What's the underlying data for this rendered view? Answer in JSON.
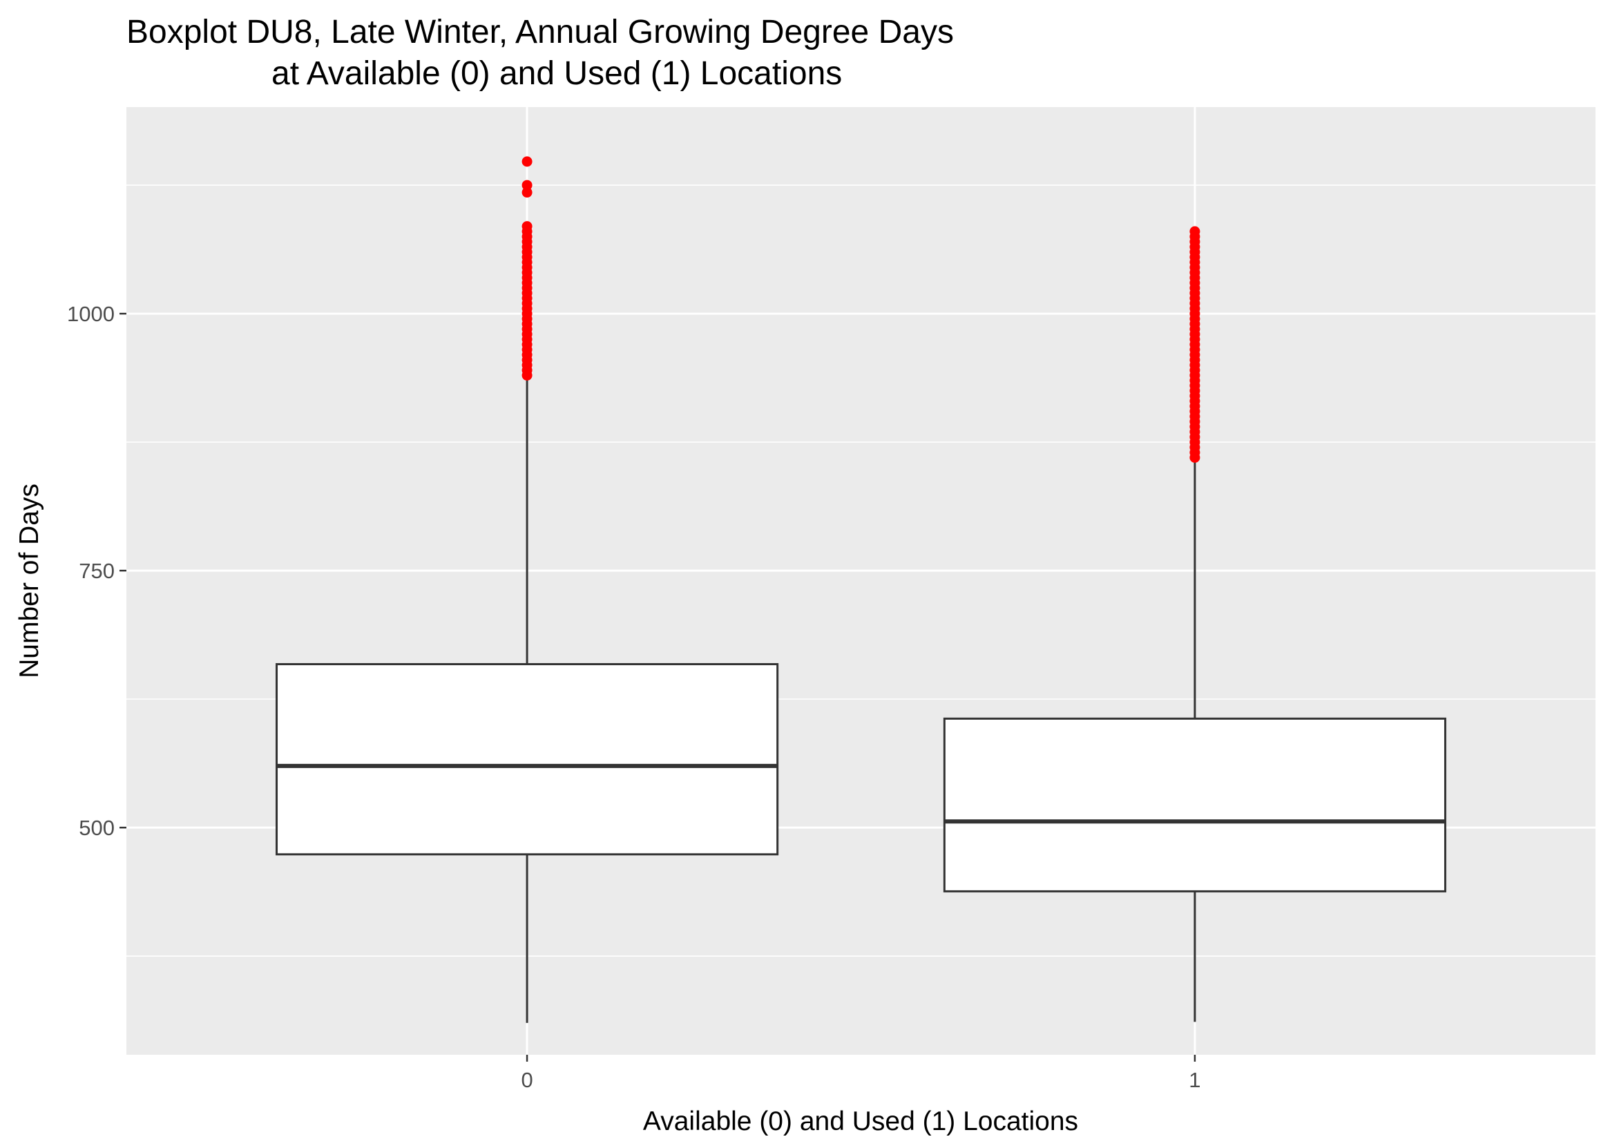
{
  "chart_data": {
    "type": "boxplot",
    "title_lines": [
      "Boxplot DU8, Late Winter, Annual Growing Degree Days",
      "at Available (0) and Used (1) Locations"
    ],
    "xlabel": "Available (0) and Used (1) Locations",
    "ylabel": "Number of Days",
    "categories": [
      "0",
      "1"
    ],
    "ylim": [
      279,
      1201
    ],
    "yticks": [
      {
        "value": 500,
        "label": "500"
      },
      {
        "value": 750,
        "label": "750"
      },
      {
        "value": 1000,
        "label": "1000"
      }
    ],
    "y_minor_ticks": [
      375,
      625,
      875,
      1125
    ],
    "grid": true,
    "panel_background": "#ebebeb",
    "grid_color": "#ffffff",
    "box_fill": "#ffffff",
    "line_color": "#333333",
    "outlier_color": "#ff0000",
    "boxes": [
      {
        "category": "0",
        "whisker_low": 310,
        "q1": 474,
        "median": 560,
        "q3": 659,
        "whisker_high": 938,
        "outliers": [
          1148,
          1125,
          1118,
          1085,
          1080,
          1075,
          1070,
          1065,
          1060,
          1055,
          1050,
          1045,
          1040,
          1035,
          1030,
          1025,
          1020,
          1015,
          1010,
          1005,
          1000,
          995,
          990,
          985,
          980,
          975,
          970,
          965,
          960,
          955,
          950,
          945,
          940
        ]
      },
      {
        "category": "1",
        "whisker_low": 311,
        "q1": 438,
        "median": 506,
        "q3": 606,
        "whisker_high": 858,
        "outliers": [
          1080,
          1075,
          1070,
          1065,
          1060,
          1055,
          1050,
          1045,
          1040,
          1035,
          1030,
          1025,
          1020,
          1015,
          1010,
          1005,
          1000,
          995,
          990,
          985,
          980,
          975,
          970,
          965,
          960,
          955,
          950,
          945,
          940,
          935,
          930,
          925,
          920,
          915,
          910,
          905,
          900,
          895,
          890,
          885,
          880,
          875,
          870,
          865,
          860
        ]
      }
    ]
  }
}
